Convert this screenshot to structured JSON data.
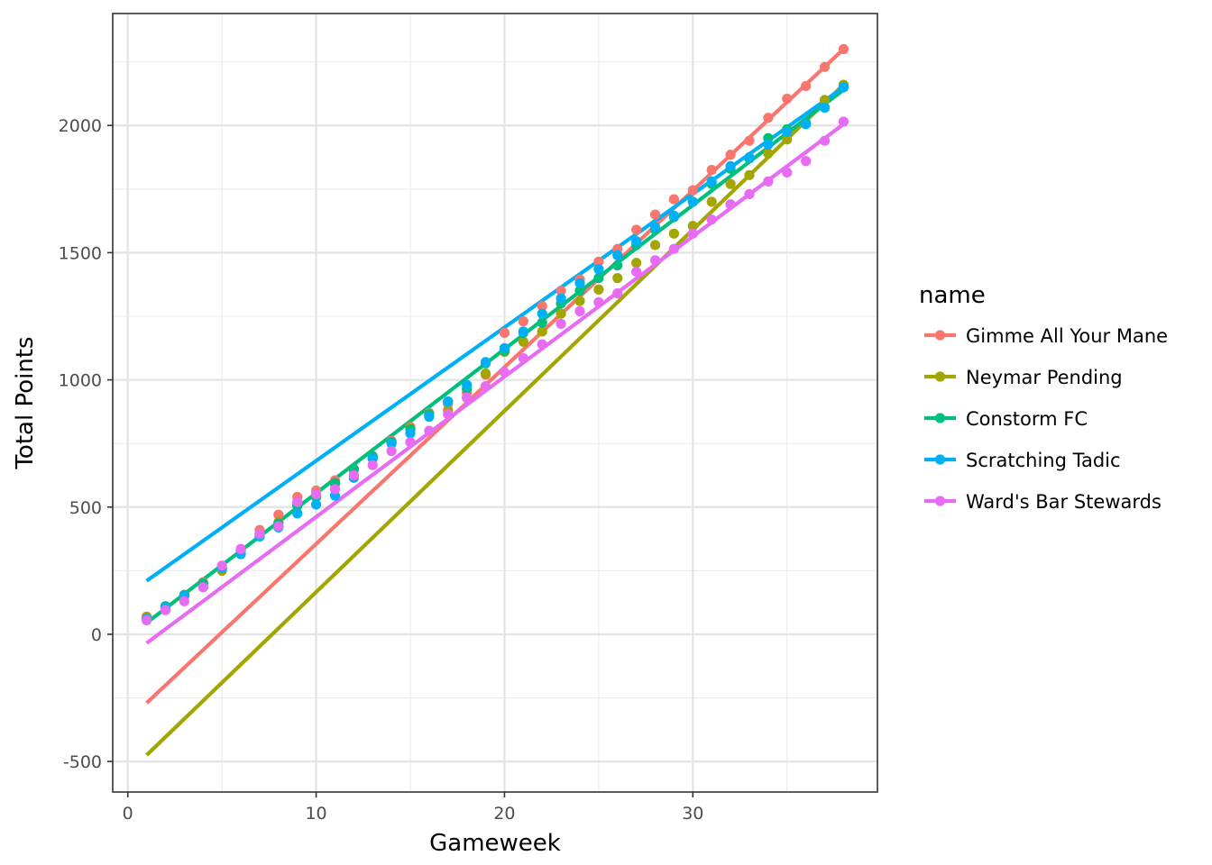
{
  "chart_data": {
    "type": "scatter",
    "xlabel": "Gameweek",
    "ylabel": "Total Points",
    "xlim": [
      -0.8,
      39.8
    ],
    "ylim": [
      -620,
      2440
    ],
    "x_ticks": [
      0,
      10,
      20,
      30
    ],
    "y_ticks": [
      -500,
      0,
      500,
      1000,
      1500,
      2000
    ],
    "x_tick_labels": [
      "0",
      "10",
      "20",
      "30"
    ],
    "y_tick_labels": [
      "-500",
      "0",
      "500",
      "1000",
      "1500",
      "2000"
    ],
    "grid": true,
    "legend": {
      "title": "name",
      "position": "right"
    },
    "x": [
      1,
      2,
      3,
      4,
      5,
      6,
      7,
      8,
      9,
      10,
      11,
      12,
      13,
      14,
      15,
      16,
      17,
      18,
      19,
      20,
      21,
      22,
      23,
      24,
      25,
      26,
      27,
      28,
      29,
      30,
      31,
      32,
      33,
      34,
      35,
      36,
      37,
      38
    ],
    "series": [
      {
        "name": "Gimme All Your Mane",
        "color": "#F8766D",
        "values": [
          70,
          110,
          155,
          205,
          260,
          335,
          410,
          470,
          540,
          565,
          605,
          650,
          700,
          760,
          815,
          870,
          905,
          950,
          1020,
          1185,
          1230,
          1290,
          1350,
          1395,
          1465,
          1515,
          1590,
          1650,
          1710,
          1745,
          1825,
          1885,
          1940,
          2030,
          2105,
          2155,
          2230,
          2300
        ],
        "fit": [
          [
            1,
            -270
          ],
          [
            38,
            2300
          ]
        ]
      },
      {
        "name": "Neymar Pending",
        "color": "#A3A500",
        "values": [
          65,
          105,
          150,
          195,
          250,
          330,
          395,
          440,
          510,
          540,
          590,
          645,
          695,
          755,
          810,
          860,
          880,
          930,
          1025,
          1110,
          1150,
          1190,
          1260,
          1310,
          1355,
          1400,
          1460,
          1530,
          1575,
          1605,
          1700,
          1770,
          1805,
          1890,
          1945,
          2010,
          2100,
          2160
        ],
        "fit": [
          [
            1,
            -475
          ],
          [
            38,
            2160
          ]
        ]
      },
      {
        "name": "Constorm FC",
        "color": "#00BF7D",
        "values": [
          60,
          110,
          155,
          200,
          260,
          330,
          385,
          435,
          505,
          540,
          595,
          650,
          700,
          755,
          805,
          865,
          915,
          965,
          1065,
          1115,
          1185,
          1225,
          1300,
          1350,
          1400,
          1450,
          1530,
          1590,
          1640,
          1700,
          1770,
          1830,
          1870,
          1950,
          1985,
          2010,
          2070,
          2150
        ],
        "fit": [
          [
            1,
            45
          ],
          [
            38,
            2140
          ]
        ]
      },
      {
        "name": "Scratching Tadic",
        "color": "#00B0F6",
        "values": [
          60,
          105,
          150,
          185,
          260,
          315,
          385,
          420,
          475,
          510,
          545,
          615,
          690,
          750,
          790,
          855,
          915,
          980,
          1070,
          1125,
          1190,
          1260,
          1320,
          1380,
          1435,
          1490,
          1545,
          1600,
          1645,
          1700,
          1780,
          1840,
          1875,
          1925,
          1975,
          2005,
          2070,
          2150
        ],
        "fit": [
          [
            1,
            210
          ],
          [
            38,
            2150
          ]
        ]
      },
      {
        "name": "Ward's Bar Stewards",
        "color": "#E76BF3",
        "values": [
          55,
          95,
          130,
          185,
          270,
          335,
          395,
          425,
          520,
          550,
          570,
          625,
          665,
          720,
          755,
          800,
          865,
          930,
          975,
          1030,
          1085,
          1140,
          1220,
          1270,
          1305,
          1340,
          1425,
          1470,
          1515,
          1575,
          1630,
          1690,
          1730,
          1780,
          1815,
          1860,
          1940,
          2015
        ],
        "fit": [
          [
            1,
            -35
          ],
          [
            38,
            2005
          ]
        ]
      }
    ]
  }
}
